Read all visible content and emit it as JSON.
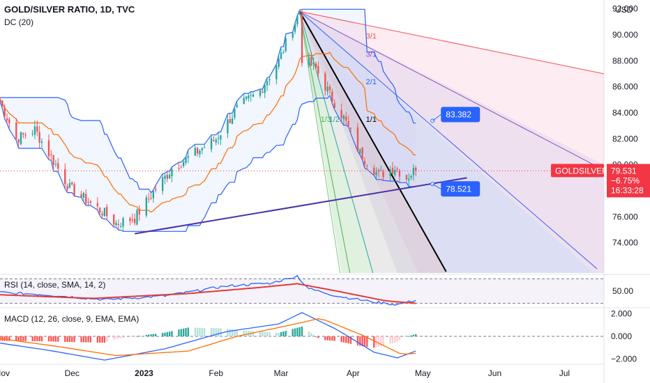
{
  "header": {
    "title": "GOLD/SILVER RATIO, 1D, TVC",
    "indicator_main": "DC (20)",
    "currency": "USD"
  },
  "panes": {
    "rsi_label": "RSI (14, close, SMA, 14, 2)",
    "macd_label": "MACD (12, 26, close, 9, EMA, EMA)"
  },
  "colors": {
    "up": "#26a69a",
    "down": "#ef5350",
    "donchian": "#2962ff",
    "donchian_mid": "#ff6d00",
    "trend": "#4a2fa8",
    "rsi": "#2962ff",
    "rsi_ma": "#e53935",
    "macd": "#2962ff",
    "signal": "#ff6d00",
    "fan_1_1": "#000000",
    "price_tag": "#f23645",
    "callout": "#2962ff"
  },
  "chart_data": [
    {
      "type": "candlestick",
      "title": "GOLD/SILVER RATIO, 1D, TVC",
      "y_unit": "USD",
      "ylim": [
        72.0,
        93.0
      ],
      "y_ticks": [
        "92.000",
        "90.000",
        "88.000",
        "86.000",
        "84.000",
        "82.000",
        "80.000",
        "78.000",
        "76.000",
        "74.000"
      ],
      "x_ticks": [
        "Nov",
        "Dec",
        "2023",
        "Feb",
        "Mar",
        "Apr",
        "May",
        "Jun",
        "Jul"
      ],
      "x_range": [
        "2022-10-31",
        "2023-07-18"
      ],
      "ohlc_anchor_points": [
        {
          "date": "2022-10-31",
          "close": 84.9
        },
        {
          "date": "2022-11-07",
          "close": 82.0
        },
        {
          "date": "2022-11-15",
          "close": 82.7
        },
        {
          "date": "2022-11-25",
          "close": 79.7
        },
        {
          "date": "2022-11-30",
          "close": 78.2
        },
        {
          "date": "2022-12-07",
          "close": 77.3
        },
        {
          "date": "2022-12-14",
          "close": 76.4
        },
        {
          "date": "2022-12-20",
          "close": 75.5
        },
        {
          "date": "2022-12-28",
          "close": 75.9
        },
        {
          "date": "2023-01-05",
          "close": 77.9
        },
        {
          "date": "2023-01-13",
          "close": 79.7
        },
        {
          "date": "2023-01-23",
          "close": 80.9
        },
        {
          "date": "2023-02-01",
          "close": 82.0
        },
        {
          "date": "2023-02-10",
          "close": 84.3
        },
        {
          "date": "2023-02-20",
          "close": 85.7
        },
        {
          "date": "2023-02-28",
          "close": 88.0
        },
        {
          "date": "2023-03-06",
          "close": 90.6
        },
        {
          "date": "2023-03-09",
          "close": 91.8
        },
        {
          "date": "2023-03-10",
          "close": 88.2
        },
        {
          "date": "2023-03-16",
          "close": 87.4
        },
        {
          "date": "2023-03-22",
          "close": 85.4
        },
        {
          "date": "2023-03-28",
          "close": 83.6
        },
        {
          "date": "2023-04-04",
          "close": 80.9
        },
        {
          "date": "2023-04-12",
          "close": 79.2
        },
        {
          "date": "2023-04-19",
          "close": 79.8
        },
        {
          "date": "2023-04-24",
          "close": 79.0
        },
        {
          "date": "2023-04-27",
          "close": 79.5
        },
        {
          "date": "2023-04-28",
          "close": 79.531
        }
      ],
      "indicators": {
        "donchian_20": {
          "upper_last": 83.2,
          "lower_last": 78.0
        },
        "trendline": [
          {
            "date": "2022-12-28",
            "value": 74.7
          },
          {
            "date": "2023-05-20",
            "value": 79.0
          }
        ],
        "gann_fan": {
          "origin": {
            "date": "2023-03-09",
            "value": 91.8
          },
          "labels": [
            "3/1",
            "2/1",
            "1/1",
            "1/2",
            "1/3"
          ]
        }
      },
      "annotations": [
        {
          "text": "83.382",
          "date": "2023-05-01",
          "value": 83.382
        },
        {
          "text": "78.521",
          "date": "2023-05-01",
          "value": 78.521
        }
      ],
      "last_price": {
        "symbol": "GOLDSILVER",
        "value": "79.531",
        "change": "−6.75%",
        "countdown": "16:33:28"
      }
    },
    {
      "type": "line",
      "title": "RSI (14, close, SMA, 14, 2)",
      "y_ticks": [
        "50.00"
      ],
      "ylim": [
        25,
        75
      ],
      "bands": [
        70,
        30
      ],
      "series": [
        {
          "name": "RSI",
          "points": [
            {
              "date": "2022-10-31",
              "value": 48
            },
            {
              "date": "2022-11-20",
              "value": 44
            },
            {
              "date": "2022-12-15",
              "value": 36
            },
            {
              "date": "2023-01-10",
              "value": 42
            },
            {
              "date": "2023-02-05",
              "value": 58
            },
            {
              "date": "2023-02-25",
              "value": 63
            },
            {
              "date": "2023-03-08",
              "value": 75
            },
            {
              "date": "2023-03-12",
              "value": 55
            },
            {
              "date": "2023-03-25",
              "value": 42
            },
            {
              "date": "2023-04-10",
              "value": 32
            },
            {
              "date": "2023-04-20",
              "value": 28
            },
            {
              "date": "2023-04-28",
              "value": 35
            }
          ]
        },
        {
          "name": "RSI-based MA",
          "points": [
            {
              "date": "2022-10-31",
              "value": 44
            },
            {
              "date": "2022-12-10",
              "value": 38
            },
            {
              "date": "2023-01-20",
              "value": 46
            },
            {
              "date": "2023-02-20",
              "value": 56
            },
            {
              "date": "2023-03-08",
              "value": 62
            },
            {
              "date": "2023-03-25",
              "value": 50
            },
            {
              "date": "2023-04-15",
              "value": 34
            },
            {
              "date": "2023-04-28",
              "value": 30
            }
          ]
        }
      ]
    },
    {
      "type": "bar+line",
      "title": "MACD (12, 26, close, 9, EMA, EMA)",
      "y_ticks": [
        "2.000",
        "0.000",
        "−2.000"
      ],
      "ylim": [
        -2.4,
        2.4
      ],
      "series": [
        {
          "name": "MACD",
          "points": [
            {
              "date": "2022-10-31",
              "value": -0.6
            },
            {
              "date": "2022-11-20",
              "value": -1.2
            },
            {
              "date": "2022-12-15",
              "value": -2.1
            },
            {
              "date": "2023-01-10",
              "value": -1.1
            },
            {
              "date": "2023-02-05",
              "value": 0.4
            },
            {
              "date": "2023-02-28",
              "value": 1.1
            },
            {
              "date": "2023-03-10",
              "value": 2.1
            },
            {
              "date": "2023-03-25",
              "value": 0.6
            },
            {
              "date": "2023-04-10",
              "value": -1.4
            },
            {
              "date": "2023-04-20",
              "value": -1.9
            },
            {
              "date": "2023-04-28",
              "value": -1.3
            }
          ]
        },
        {
          "name": "Signal",
          "points": [
            {
              "date": "2022-10-31",
              "value": -0.2
            },
            {
              "date": "2022-11-25",
              "value": -0.9
            },
            {
              "date": "2022-12-20",
              "value": -1.7
            },
            {
              "date": "2023-01-20",
              "value": -1.3
            },
            {
              "date": "2023-02-10",
              "value": 0.0
            },
            {
              "date": "2023-03-05",
              "value": 1.0
            },
            {
              "date": "2023-03-18",
              "value": 1.6
            },
            {
              "date": "2023-04-05",
              "value": 0.1
            },
            {
              "date": "2023-04-22",
              "value": -1.6
            },
            {
              "date": "2023-04-28",
              "value": -1.5
            }
          ]
        }
      ]
    }
  ]
}
